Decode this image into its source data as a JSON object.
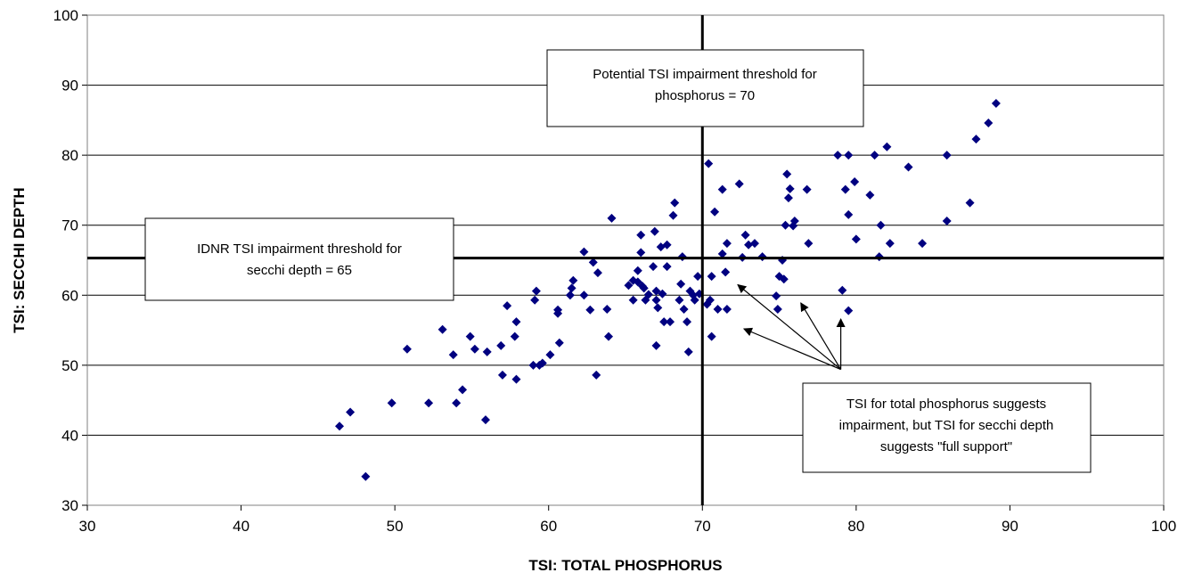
{
  "chart_data": {
    "type": "scatter",
    "title": "",
    "xlabel": "TSI:  TOTAL PHOSPHORUS",
    "ylabel": "TSI:  SECCHI DEPTH",
    "xlim": [
      30,
      100
    ],
    "ylim": [
      30,
      100
    ],
    "xticks": [
      "30",
      "40",
      "50",
      "60",
      "70",
      "80",
      "90",
      "100"
    ],
    "yticks": [
      "30",
      "40",
      "50",
      "60",
      "70",
      "80",
      "90",
      "100"
    ],
    "grid": "horizontal",
    "marker_color": "#000080",
    "marker": "diamond",
    "thresholds": {
      "vertical_x": 70,
      "horizontal_y": 65.3
    },
    "annotations": {
      "phosphorus_threshold": [
        "Potential TSI impairment threshold for",
        "phosphorus = 70"
      ],
      "secchi_threshold": [
        "IDNR TSI impairment threshold for",
        "secchi depth = 65"
      ],
      "impairment_note": [
        "TSI for total phosphorus suggests",
        "impairment, but TSI for secchi depth",
        "suggests \"full support\""
      ]
    },
    "arrow_targets": [
      [
        72.3,
        61.5
      ],
      [
        72.7,
        55.2
      ],
      [
        76.4,
        58.9
      ],
      [
        79.0,
        56.6
      ]
    ],
    "arrow_origin": [
      79.0,
      49.4
    ],
    "points": [
      [
        46.4,
        41.3
      ],
      [
        47.1,
        43.3
      ],
      [
        48.1,
        34.1
      ],
      [
        49.8,
        44.6
      ],
      [
        50.8,
        52.3
      ],
      [
        52.2,
        44.6
      ],
      [
        53.1,
        55.1
      ],
      [
        53.8,
        51.5
      ],
      [
        54.0,
        44.6
      ],
      [
        54.4,
        46.5
      ],
      [
        54.9,
        54.1
      ],
      [
        55.2,
        52.3
      ],
      [
        55.9,
        42.2
      ],
      [
        56.0,
        51.9
      ],
      [
        56.9,
        52.8
      ],
      [
        57.0,
        48.6
      ],
      [
        57.3,
        58.5
      ],
      [
        57.8,
        54.1
      ],
      [
        57.9,
        56.2
      ],
      [
        57.9,
        48.0
      ],
      [
        59.0,
        50.0
      ],
      [
        59.1,
        59.3
      ],
      [
        59.2,
        60.6
      ],
      [
        59.4,
        50.0
      ],
      [
        59.6,
        50.3
      ],
      [
        60.1,
        51.5
      ],
      [
        60.6,
        57.4
      ],
      [
        60.6,
        57.9
      ],
      [
        60.7,
        53.2
      ],
      [
        61.4,
        60.0
      ],
      [
        61.5,
        61.0
      ],
      [
        61.6,
        62.1
      ],
      [
        62.3,
        66.2
      ],
      [
        62.3,
        60.0
      ],
      [
        62.7,
        57.9
      ],
      [
        62.9,
        64.7
      ],
      [
        63.1,
        48.6
      ],
      [
        63.2,
        63.2
      ],
      [
        63.8,
        58.0
      ],
      [
        63.9,
        54.1
      ],
      [
        64.1,
        71.0
      ],
      [
        65.2,
        61.4
      ],
      [
        65.5,
        62.1
      ],
      [
        65.5,
        59.3
      ],
      [
        65.8,
        63.5
      ],
      [
        65.8,
        61.9
      ],
      [
        66.0,
        68.6
      ],
      [
        66.0,
        66.1
      ],
      [
        66.1,
        61.3
      ],
      [
        66.2,
        61.0
      ],
      [
        66.3,
        59.3
      ],
      [
        66.5,
        60.1
      ],
      [
        66.8,
        64.1
      ],
      [
        66.9,
        69.1
      ],
      [
        67.0,
        60.6
      ],
      [
        67.0,
        59.3
      ],
      [
        67.0,
        52.8
      ],
      [
        67.1,
        58.2
      ],
      [
        67.3,
        66.9
      ],
      [
        67.4,
        60.2
      ],
      [
        67.5,
        56.2
      ],
      [
        67.7,
        64.1
      ],
      [
        67.7,
        67.2
      ],
      [
        67.9,
        56.2
      ],
      [
        68.1,
        71.4
      ],
      [
        68.2,
        73.2
      ],
      [
        68.5,
        59.3
      ],
      [
        68.6,
        61.6
      ],
      [
        68.7,
        65.5
      ],
      [
        68.8,
        58.0
      ],
      [
        69.0,
        56.2
      ],
      [
        69.1,
        51.9
      ],
      [
        69.2,
        60.6
      ],
      [
        69.4,
        60.0
      ],
      [
        69.5,
        59.3
      ],
      [
        69.7,
        62.7
      ],
      [
        69.8,
        60.2
      ],
      [
        70.3,
        58.7
      ],
      [
        70.4,
        78.8
      ],
      [
        70.5,
        59.3
      ],
      [
        70.6,
        62.7
      ],
      [
        70.6,
        54.1
      ],
      [
        70.8,
        71.9
      ],
      [
        71.0,
        58.0
      ],
      [
        71.3,
        65.9
      ],
      [
        71.3,
        75.1
      ],
      [
        71.5,
        63.3
      ],
      [
        71.6,
        67.4
      ],
      [
        71.6,
        58.0
      ],
      [
        72.4,
        75.9
      ],
      [
        72.6,
        65.4
      ],
      [
        72.8,
        68.6
      ],
      [
        73.0,
        67.2
      ],
      [
        73.4,
        67.4
      ],
      [
        73.9,
        65.5
      ],
      [
        74.8,
        59.9
      ],
      [
        74.9,
        58.0
      ],
      [
        75.0,
        62.7
      ],
      [
        75.2,
        65.0
      ],
      [
        75.3,
        62.3
      ],
      [
        75.4,
        70.0
      ],
      [
        75.5,
        77.3
      ],
      [
        75.6,
        73.9
      ],
      [
        75.7,
        75.2
      ],
      [
        75.9,
        69.9
      ],
      [
        76.0,
        70.6
      ],
      [
        76.8,
        75.1
      ],
      [
        76.9,
        67.4
      ],
      [
        78.8,
        80.0
      ],
      [
        79.1,
        60.7
      ],
      [
        79.3,
        75.1
      ],
      [
        79.5,
        80.0
      ],
      [
        79.5,
        71.5
      ],
      [
        79.5,
        57.8
      ],
      [
        79.9,
        76.2
      ],
      [
        80.0,
        68.0
      ],
      [
        80.9,
        74.3
      ],
      [
        81.2,
        80.0
      ],
      [
        81.5,
        65.5
      ],
      [
        81.6,
        70.0
      ],
      [
        82.0,
        81.2
      ],
      [
        82.2,
        67.4
      ],
      [
        83.4,
        78.3
      ],
      [
        84.3,
        67.4
      ],
      [
        85.9,
        80.0
      ],
      [
        85.9,
        70.6
      ],
      [
        87.4,
        73.2
      ],
      [
        87.8,
        82.3
      ],
      [
        88.6,
        84.6
      ],
      [
        89.1,
        87.4
      ]
    ]
  }
}
